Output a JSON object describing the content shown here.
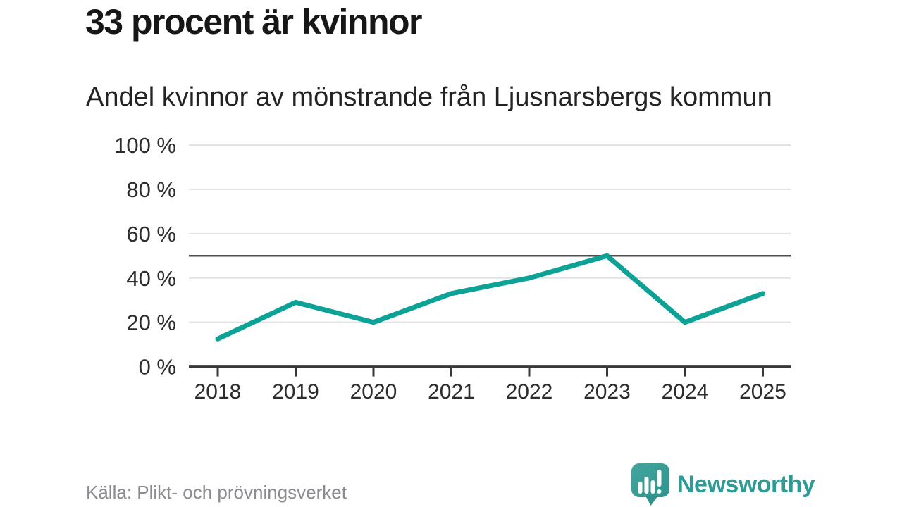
{
  "header": {
    "title": "33 procent är kvinnor",
    "subtitle": "Andel kvinnor av mönstrande från Ljusnarsbergs kommun"
  },
  "chart_data": {
    "type": "line",
    "title": "33 procent är kvinnor",
    "subtitle": "Andel kvinnor av mönstrande från Ljusnarsbergs kommun",
    "categories": [
      "2018",
      "2019",
      "2020",
      "2021",
      "2022",
      "2023",
      "2024",
      "2025"
    ],
    "values": [
      12.5,
      29,
      20,
      33,
      40,
      50,
      20,
      33
    ],
    "unit": "%",
    "ylim": [
      0,
      100
    ],
    "y_ticks": [
      0,
      20,
      40,
      60,
      80,
      100
    ],
    "y_tick_labels": [
      "0 %",
      "20 %",
      "40 %",
      "60 %",
      "80 %",
      "100 %"
    ],
    "reference_line": 50,
    "grid": true,
    "legend": "none",
    "line_color": "#0DA296",
    "grid_color": "#e2e2e2",
    "axis_color": "#383838",
    "reference_color": "#4d4d4d",
    "tick_label_color": "#2d2d2d"
  },
  "footer": {
    "source": "Källa: Plikt- och prövningsverket",
    "brand": "Newsworthy",
    "brand_color": "#2F9B96",
    "icon_color": "#3BA09A",
    "icon_color_dark": "#2D948D"
  }
}
